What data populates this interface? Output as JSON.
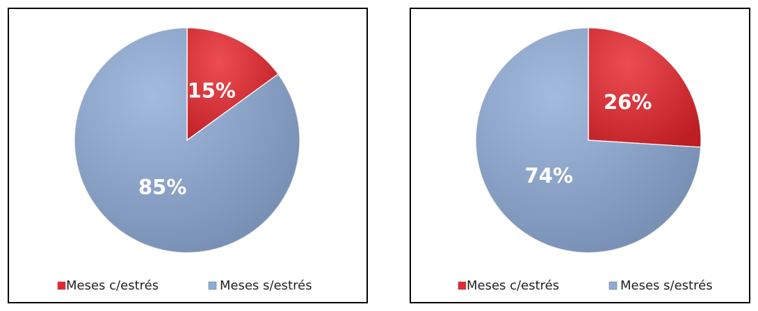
{
  "chart_data": [
    {
      "type": "pie",
      "categories": [
        "Meses c/estrés",
        "Meses s/estrés"
      ],
      "values": [
        15,
        85
      ],
      "value_labels": [
        "15%",
        "85%"
      ],
      "colors": [
        "#e8262c",
        "#8fabd8"
      ],
      "legend": "bottom"
    },
    {
      "type": "pie",
      "categories": [
        "Meses c/estrés",
        "Meses s/estrés"
      ],
      "values": [
        26,
        74
      ],
      "value_labels": [
        "26%",
        "74%"
      ],
      "colors": [
        "#e8262c",
        "#8fabd8"
      ],
      "legend": "bottom"
    }
  ]
}
